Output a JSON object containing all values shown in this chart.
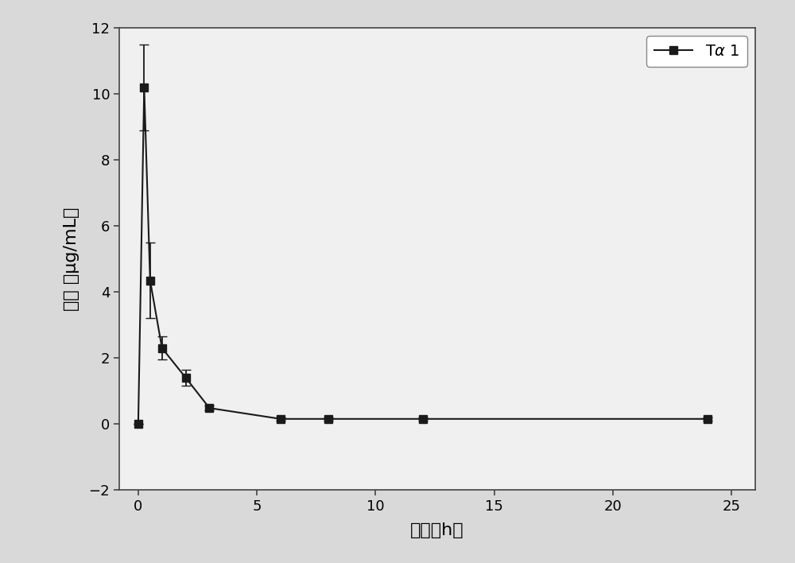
{
  "x": [
    0.0,
    0.25,
    0.5,
    1.0,
    2.0,
    3.0,
    6.0,
    8.0,
    12.0,
    24.0
  ],
  "y": [
    0.0,
    10.2,
    4.35,
    2.3,
    1.4,
    0.48,
    0.15,
    0.15,
    0.15,
    0.15
  ],
  "yerr": [
    0.0,
    1.3,
    1.15,
    0.35,
    0.25,
    0.08,
    0.05,
    0.05,
    0.05,
    0.05
  ],
  "xlim": [
    -0.8,
    26
  ],
  "ylim": [
    -2,
    12
  ],
  "xticks": [
    0,
    5,
    10,
    15,
    20,
    25
  ],
  "yticks": [
    -2,
    0,
    2,
    4,
    6,
    8,
    10,
    12
  ],
  "xlabel_cn": "时间",
  "xlabel_h": "h",
  "ylabel_cn": "浓度",
  "ylabel_unit": "（μg/mL）",
  "line_color": "#1a1a1a",
  "marker": "s",
  "marker_size": 7,
  "line_width": 1.5,
  "capsize": 4,
  "fig_bg": "#d9d9d9",
  "ax_bg": "#f0f0f0"
}
